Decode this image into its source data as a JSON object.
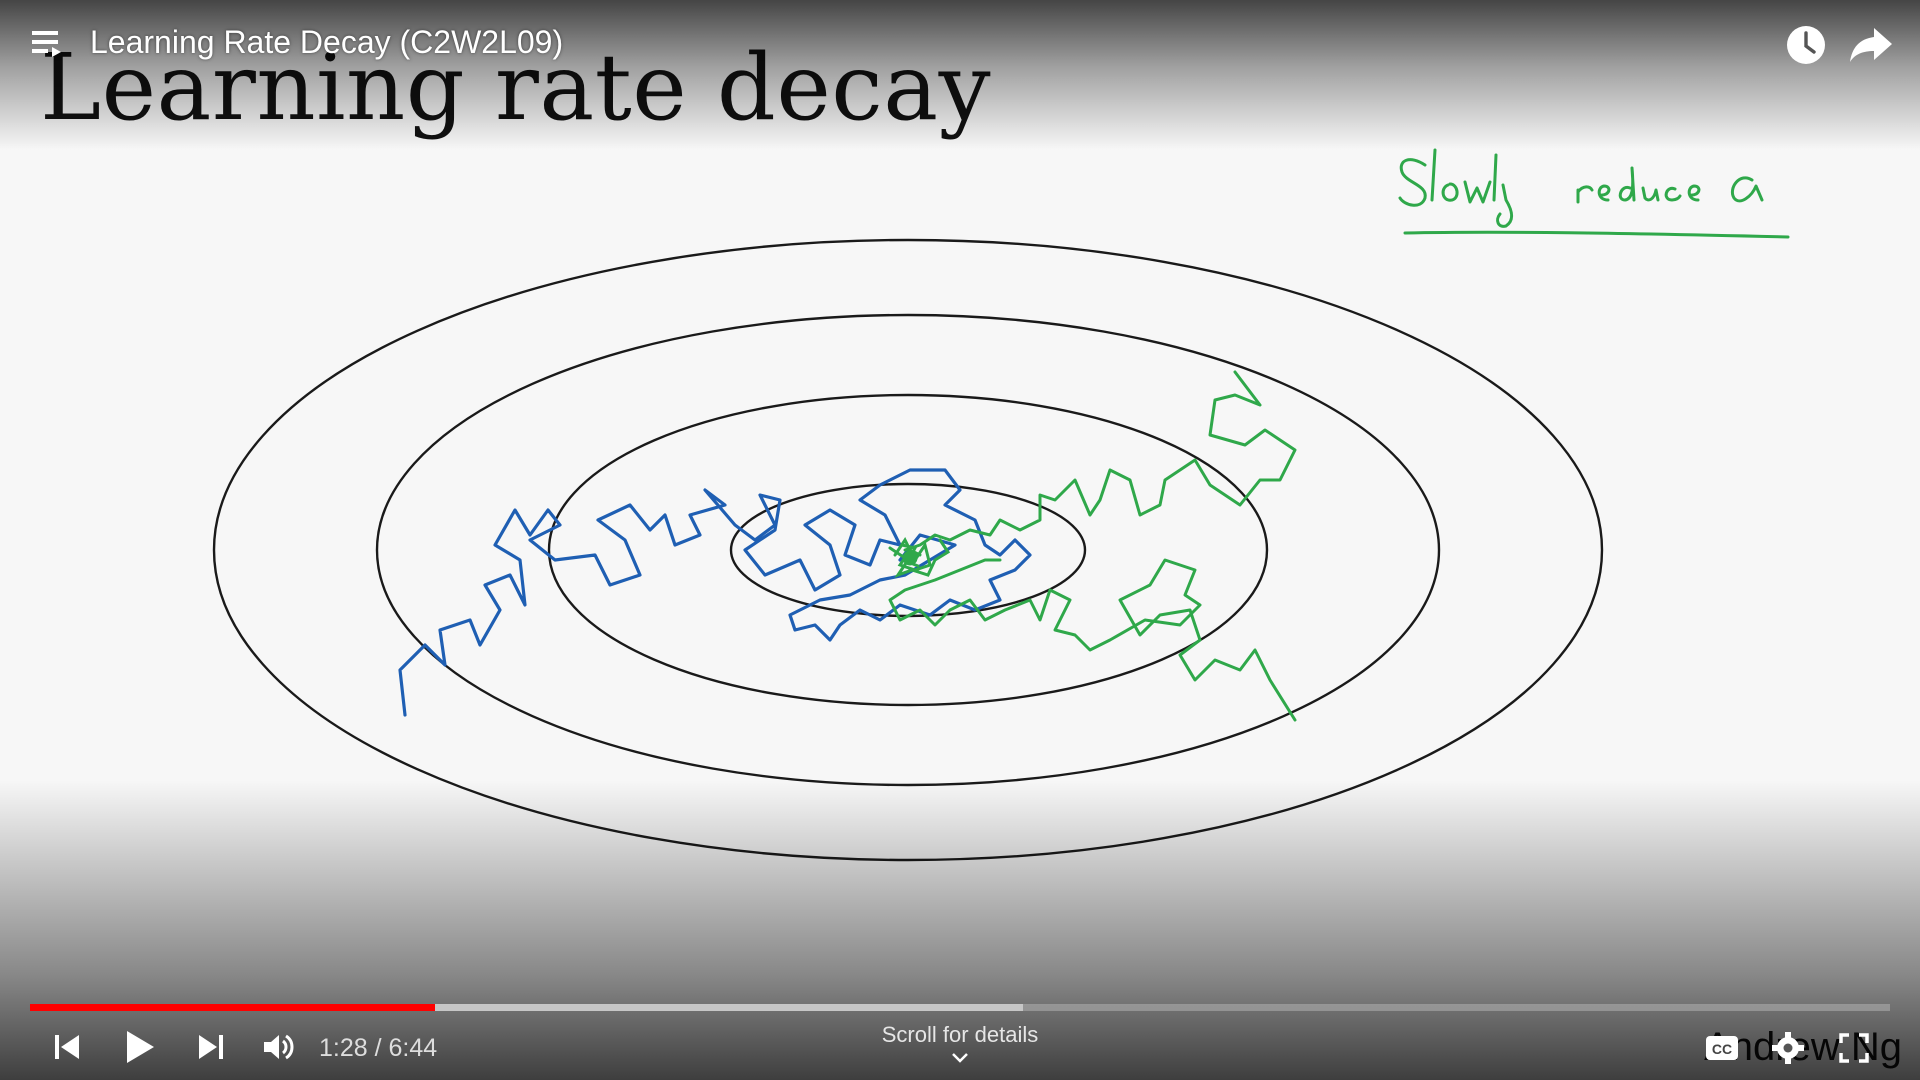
{
  "player": {
    "title": "Learning Rate Decay (C2W2L09)",
    "current_time": "1:28",
    "separator": "/",
    "duration": "6:44",
    "played_fraction": 0.218,
    "buffered_fraction": 0.534,
    "scroll_hint": "Scroll for details",
    "colors": {
      "progress_played": "#ff0000",
      "overlay_text": "#ffffff"
    },
    "icons": [
      "playlist-icon",
      "watch-later-icon",
      "share-icon",
      "previous-icon",
      "play-icon",
      "next-icon",
      "volume-icon",
      "chevron-down-icon",
      "captions-icon",
      "settings-icon",
      "fullscreen-icon"
    ]
  },
  "slide": {
    "title": "Learning rate decay",
    "note": "Slowly reduce α",
    "watermark": "Andrew Ng",
    "colors": {
      "contours": "#1a1a1a",
      "path_without_decay": "#1f5fb3",
      "path_with_decay": "#2fa84a"
    }
  }
}
